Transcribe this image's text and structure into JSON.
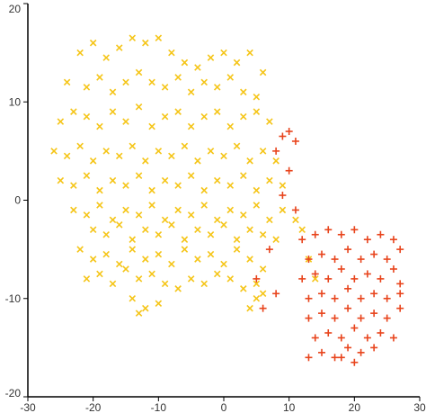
{
  "chart_data": {
    "type": "scatter",
    "title": "",
    "xlabel": "",
    "ylabel": "",
    "xlim": [
      -30,
      30
    ],
    "ylim": [
      -20,
      20
    ],
    "x_ticks": [
      "-30",
      "-20",
      "-10",
      "0",
      "10",
      "20",
      "30"
    ],
    "y_ticks": [
      "20",
      "10",
      "0",
      "-10",
      "-20"
    ],
    "grid": false,
    "legend": "none",
    "series": [
      {
        "marker": "x",
        "color": "#f5c518",
        "points": [
          [
            -22,
            15
          ],
          [
            -20,
            16
          ],
          [
            -18,
            14.5
          ],
          [
            -16,
            15.5
          ],
          [
            -14,
            16.5
          ],
          [
            -12,
            16
          ],
          [
            -10,
            16.5
          ],
          [
            -8,
            15
          ],
          [
            -6,
            14
          ],
          [
            -4,
            13.5
          ],
          [
            -2,
            14.5
          ],
          [
            0,
            15
          ],
          [
            2,
            14
          ],
          [
            4,
            15
          ],
          [
            6,
            13
          ],
          [
            -24,
            12
          ],
          [
            -21,
            11.5
          ],
          [
            -19,
            12.5
          ],
          [
            -17,
            11
          ],
          [
            -15,
            12
          ],
          [
            -13,
            13
          ],
          [
            -11,
            12
          ],
          [
            -9,
            11.5
          ],
          [
            -7,
            12.5
          ],
          [
            -5,
            11
          ],
          [
            -3,
            12
          ],
          [
            -1,
            11.5
          ],
          [
            1,
            12.5
          ],
          [
            3,
            11
          ],
          [
            5,
            10.5
          ],
          [
            -25,
            8
          ],
          [
            -23,
            9
          ],
          [
            -21,
            8.5
          ],
          [
            -19,
            7.5
          ],
          [
            -17,
            9
          ],
          [
            -15,
            8
          ],
          [
            -13,
            9.5
          ],
          [
            -11,
            7.5
          ],
          [
            -9,
            8.5
          ],
          [
            -7,
            9
          ],
          [
            -5,
            7.5
          ],
          [
            -3,
            8.5
          ],
          [
            -1,
            9
          ],
          [
            1,
            7.5
          ],
          [
            3,
            8.5
          ],
          [
            5,
            9
          ],
          [
            7,
            8
          ],
          [
            -26,
            5
          ],
          [
            -24,
            4.5
          ],
          [
            -22,
            5.5
          ],
          [
            -20,
            4
          ],
          [
            -18,
            5
          ],
          [
            -16,
            4.5
          ],
          [
            -14,
            5.5
          ],
          [
            -12,
            4
          ],
          [
            -10,
            5
          ],
          [
            -8,
            4.5
          ],
          [
            -6,
            5.5
          ],
          [
            -4,
            4
          ],
          [
            -2,
            5
          ],
          [
            0,
            4.5
          ],
          [
            2,
            5.5
          ],
          [
            4,
            4
          ],
          [
            6,
            5
          ],
          [
            8,
            4
          ],
          [
            -25,
            2
          ],
          [
            -23,
            1.5
          ],
          [
            -21,
            2.5
          ],
          [
            -19,
            1
          ],
          [
            -17,
            2
          ],
          [
            -15,
            1.5
          ],
          [
            -13,
            2.5
          ],
          [
            -11,
            1
          ],
          [
            -9,
            2
          ],
          [
            -7,
            1.5
          ],
          [
            -5,
            2.5
          ],
          [
            -3,
            1
          ],
          [
            -1,
            2
          ],
          [
            1,
            1.5
          ],
          [
            3,
            2.5
          ],
          [
            5,
            1
          ],
          [
            7,
            2
          ],
          [
            9,
            1.5
          ],
          [
            -23,
            -1
          ],
          [
            -21,
            -1.5
          ],
          [
            -19,
            -0.5
          ],
          [
            -17,
            -2
          ],
          [
            -15,
            -1
          ],
          [
            -13,
            -1.5
          ],
          [
            -11,
            -0.5
          ],
          [
            -9,
            -2
          ],
          [
            -7,
            -1
          ],
          [
            -5,
            -1.5
          ],
          [
            -3,
            -0.5
          ],
          [
            -1,
            -2
          ],
          [
            1,
            -1
          ],
          [
            3,
            -1.5
          ],
          [
            5,
            -0.5
          ],
          [
            7,
            -2
          ],
          [
            9,
            -1
          ],
          [
            -20,
            -3
          ],
          [
            -18,
            -3.5
          ],
          [
            -16,
            -2.5
          ],
          [
            -14,
            -4
          ],
          [
            -12,
            -3
          ],
          [
            -10,
            -3.5
          ],
          [
            -8,
            -2.5
          ],
          [
            -6,
            -4
          ],
          [
            -4,
            -3
          ],
          [
            -2,
            -3.5
          ],
          [
            0,
            -2.5
          ],
          [
            2,
            -4
          ],
          [
            4,
            -3
          ],
          [
            6,
            -3.5
          ],
          [
            8,
            -4
          ],
          [
            -22,
            -5
          ],
          [
            -20,
            -6
          ],
          [
            -18,
            -5.5
          ],
          [
            -16,
            -6.5
          ],
          [
            -14,
            -5
          ],
          [
            -12,
            -6
          ],
          [
            -10,
            -5.5
          ],
          [
            -8,
            -6.5
          ],
          [
            -6,
            -5
          ],
          [
            -4,
            -6
          ],
          [
            -2,
            -5.5
          ],
          [
            0,
            -6.5
          ],
          [
            2,
            -5
          ],
          [
            4,
            -6
          ],
          [
            6,
            -7
          ],
          [
            -21,
            -8
          ],
          [
            -19,
            -7.5
          ],
          [
            -17,
            -8.5
          ],
          [
            -15,
            -7
          ],
          [
            -13,
            -8
          ],
          [
            -11,
            -7.5
          ],
          [
            -9,
            -8.5
          ],
          [
            -7,
            -9
          ],
          [
            -5,
            -8
          ],
          [
            -3,
            -8.5
          ],
          [
            -1,
            -7.5
          ],
          [
            1,
            -8
          ],
          [
            3,
            -9
          ],
          [
            5,
            -8.5
          ],
          [
            6,
            -9.5
          ],
          [
            -14,
            -10
          ],
          [
            -12,
            -11
          ],
          [
            -10,
            -10.5
          ],
          [
            -13,
            -11.5
          ],
          [
            4,
            -11
          ],
          [
            5,
            -10
          ],
          [
            11,
            -2
          ],
          [
            12,
            -3
          ],
          [
            13,
            -6
          ],
          [
            14,
            -8
          ]
        ]
      },
      {
        "marker": "+",
        "color": "#e8441c",
        "points": [
          [
            9,
            6.5
          ],
          [
            10,
            7
          ],
          [
            11,
            6
          ],
          [
            8,
            5
          ],
          [
            10,
            3
          ],
          [
            9,
            0.5
          ],
          [
            11,
            -1
          ],
          [
            7,
            -5
          ],
          [
            5,
            -8
          ],
          [
            6,
            -11
          ],
          [
            8,
            -9.5
          ],
          [
            12,
            -4
          ],
          [
            14,
            -3.5
          ],
          [
            16,
            -3
          ],
          [
            18,
            -3.5
          ],
          [
            20,
            -3
          ],
          [
            22,
            -4
          ],
          [
            24,
            -3.5
          ],
          [
            26,
            -4
          ],
          [
            13,
            -6
          ],
          [
            15,
            -5.5
          ],
          [
            17,
            -6
          ],
          [
            19,
            -5
          ],
          [
            21,
            -6
          ],
          [
            23,
            -5.5
          ],
          [
            25,
            -6
          ],
          [
            27,
            -5
          ],
          [
            12,
            -8
          ],
          [
            14,
            -7.5
          ],
          [
            16,
            -8
          ],
          [
            18,
            -7
          ],
          [
            20,
            -8
          ],
          [
            22,
            -7.5
          ],
          [
            24,
            -8
          ],
          [
            26,
            -7
          ],
          [
            27,
            -8.5
          ],
          [
            13,
            -10
          ],
          [
            15,
            -9.5
          ],
          [
            17,
            -10
          ],
          [
            19,
            -9
          ],
          [
            21,
            -10
          ],
          [
            23,
            -9.5
          ],
          [
            25,
            -10
          ],
          [
            27,
            -9.5
          ],
          [
            13,
            -12
          ],
          [
            15,
            -11.5
          ],
          [
            17,
            -12
          ],
          [
            19,
            -11
          ],
          [
            21,
            -12
          ],
          [
            23,
            -11.5
          ],
          [
            25,
            -12
          ],
          [
            27,
            -11
          ],
          [
            14,
            -14
          ],
          [
            16,
            -13.5
          ],
          [
            18,
            -14
          ],
          [
            20,
            -13
          ],
          [
            22,
            -14
          ],
          [
            24,
            -13.5
          ],
          [
            26,
            -14
          ],
          [
            13,
            -16
          ],
          [
            15,
            -15.5
          ],
          [
            17,
            -16
          ],
          [
            19,
            -15
          ],
          [
            21,
            -15.5
          ],
          [
            23,
            -15
          ],
          [
            20,
            -16.5
          ],
          [
            18,
            -16
          ]
        ]
      }
    ]
  }
}
